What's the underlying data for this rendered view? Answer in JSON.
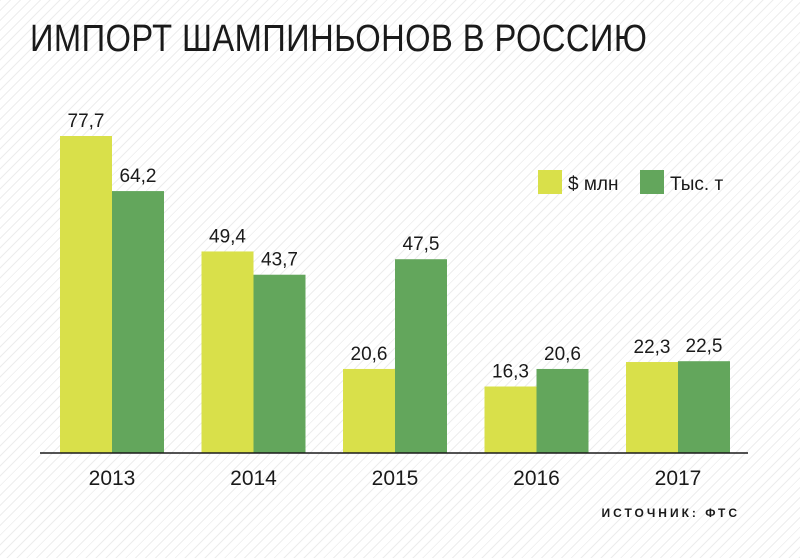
{
  "chart_data": {
    "type": "bar",
    "title": "ИМПОРТ ШАМПИНЬОНОВ В РОССИЮ",
    "categories": [
      "2013",
      "2014",
      "2015",
      "2016",
      "2017"
    ],
    "series": [
      {
        "name": "$ млн",
        "values": [
          77.7,
          49.4,
          20.6,
          16.3,
          22.3
        ],
        "color": "#d9e04a"
      },
      {
        "name": "Тыс. т",
        "values": [
          64.2,
          43.7,
          47.5,
          20.6,
          22.5
        ],
        "color": "#63a65c"
      }
    ],
    "value_labels": [
      [
        "77,7",
        "49,4",
        "20,6",
        "16,3",
        "22,3"
      ],
      [
        "64,2",
        "43,7",
        "47,5",
        "20,6",
        "22,5"
      ]
    ],
    "ylim": [
      0,
      80
    ],
    "grid": false,
    "legend_position": "top-right",
    "source": "ИСТОЧНИК: ФТС"
  }
}
